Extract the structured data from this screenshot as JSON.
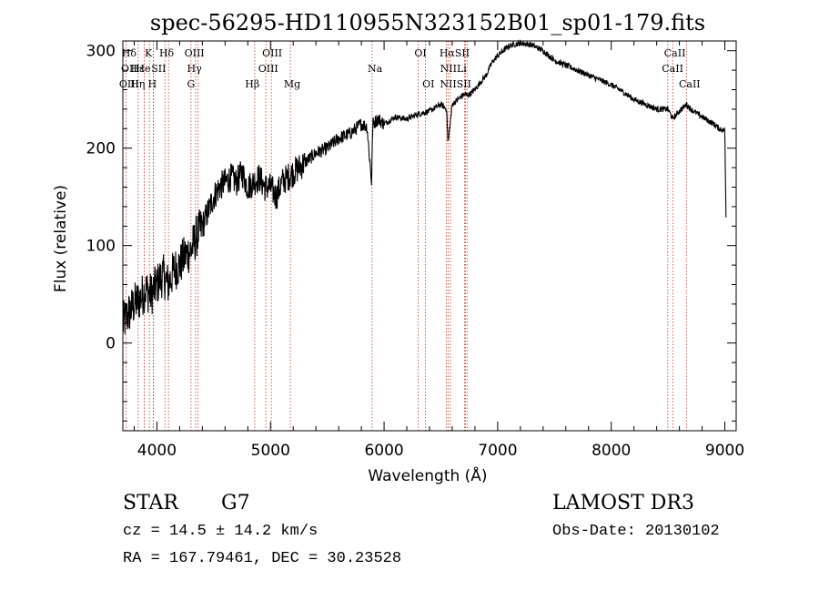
{
  "chart_data": {
    "type": "line",
    "title": "spec-56295-HD110955N323152B01_sp01-179.fits",
    "xlabel": "Wavelength (Å)",
    "ylabel": "Flux (relative)",
    "xlim": [
      3700,
      9100
    ],
    "ylim": [
      -90,
      310
    ],
    "x_ticks": [
      4000,
      5000,
      6000,
      7000,
      8000,
      9000
    ],
    "x_tick_labels": [
      "4000",
      "5000",
      "6000",
      "7000",
      "8000",
      "9000"
    ],
    "y_ticks": [
      0,
      100,
      200,
      300
    ],
    "y_tick_labels": [
      "0",
      "100",
      "200",
      "300"
    ],
    "series": [
      {
        "name": "spectrum",
        "x": [
          3700,
          3750,
          3800,
          3850,
          3900,
          3950,
          4000,
          4050,
          4100,
          4150,
          4200,
          4250,
          4300,
          4350,
          4400,
          4450,
          4500,
          4550,
          4600,
          4650,
          4700,
          4750,
          4800,
          4850,
          4900,
          4950,
          5000,
          5050,
          5100,
          5150,
          5200,
          5300,
          5400,
          5500,
          5600,
          5700,
          5800,
          5850,
          5890,
          5900,
          5950,
          6000,
          6100,
          6200,
          6300,
          6400,
          6500,
          6550,
          6563,
          6600,
          6650,
          6700,
          6750,
          6800,
          6850,
          6900,
          6950,
          7000,
          7100,
          7200,
          7300,
          7400,
          7500,
          7600,
          7700,
          7800,
          7900,
          8000,
          8100,
          8200,
          8300,
          8400,
          8500,
          8542,
          8600,
          8662,
          8700,
          8800,
          8900,
          8950,
          9000,
          9010
        ],
        "y": [
          20,
          30,
          40,
          45,
          55,
          50,
          60,
          70,
          60,
          75,
          80,
          90,
          95,
          110,
          120,
          135,
          150,
          160,
          165,
          170,
          165,
          175,
          160,
          165,
          170,
          160,
          160,
          150,
          165,
          170,
          175,
          185,
          195,
          200,
          210,
          215,
          225,
          222,
          165,
          225,
          230,
          225,
          232,
          230,
          235,
          238,
          245,
          240,
          205,
          245,
          250,
          255,
          255,
          260,
          268,
          275,
          288,
          295,
          305,
          308,
          306,
          300,
          290,
          285,
          280,
          275,
          270,
          265,
          258,
          250,
          245,
          240,
          240,
          230,
          238,
          245,
          240,
          232,
          225,
          220,
          218,
          130
        ]
      }
    ],
    "line_features": [
      {
        "name": "Hε",
        "wavelength": 3970
      },
      {
        "name": "OII",
        "wavelength": 3727
      },
      {
        "name": "Hη",
        "wavelength": 3835
      },
      {
        "name": "Hζ",
        "wavelength": 3889
      },
      {
        "name": "K",
        "wavelength": 3934
      },
      {
        "name": "H",
        "wavelength": 3968
      },
      {
        "name": "He",
        "wavelength": 3889
      },
      {
        "name": "SII",
        "wavelength": 4070
      },
      {
        "name": "Hδ",
        "wavelength": 4102
      },
      {
        "name": "OIII",
        "wavelength": 4363
      },
      {
        "name": "Hγ",
        "wavelength": 4340
      },
      {
        "name": "G",
        "wavelength": 4300
      },
      {
        "name": "Hβ",
        "wavelength": 4861
      },
      {
        "name": "OIII",
        "wavelength": 4959
      },
      {
        "name": "OIII",
        "wavelength": 5007
      },
      {
        "name": "Mg",
        "wavelength": 5175
      },
      {
        "name": "Na",
        "wavelength": 5894
      },
      {
        "name": "OI",
        "wavelength": 6300
      },
      {
        "name": "OI",
        "wavelength": 6364
      },
      {
        "name": "Hα",
        "wavelength": 6563
      },
      {
        "name": "NII",
        "wavelength": 6548
      },
      {
        "name": "NII",
        "wavelength": 6583
      },
      {
        "name": "SII",
        "wavelength": 6717
      },
      {
        "name": "SII",
        "wavelength": 6731
      },
      {
        "name": "Li",
        "wavelength": 6708
      },
      {
        "name": "CaII",
        "wavelength": 8498
      },
      {
        "name": "CaII",
        "wavelength": 8542
      },
      {
        "name": "CaII",
        "wavelength": 8662
      }
    ],
    "line_labels": [
      {
        "text": "Hδ",
        "row": 0,
        "x": 3755
      },
      {
        "text": "OII",
        "row": 1,
        "x": 3755
      },
      {
        "text": "OIII",
        "row": 2,
        "x": 3755
      },
      {
        "text": "K",
        "row": 0,
        "x": 3925
      },
      {
        "text": "Hε",
        "row": 1,
        "x": 3830
      },
      {
        "text": "He",
        "row": 1,
        "x": 3880
      },
      {
        "text": "Hη",
        "row": 2,
        "x": 3830
      },
      {
        "text": "SII",
        "row": 1,
        "x": 4015
      },
      {
        "text": "H",
        "row": 2,
        "x": 3960
      },
      {
        "text": "Hδ",
        "row": 0,
        "x": 4085
      },
      {
        "text": "OIII",
        "row": 0,
        "x": 4330
      },
      {
        "text": "Hγ",
        "row": 1,
        "x": 4330
      },
      {
        "text": "G",
        "row": 2,
        "x": 4300
      },
      {
        "text": "Hβ",
        "row": 2,
        "x": 4840
      },
      {
        "text": "OIII",
        "row": 0,
        "x": 5015
      },
      {
        "text": "OIII",
        "row": 1,
        "x": 4980
      },
      {
        "text": "Mg",
        "row": 2,
        "x": 5190
      },
      {
        "text": "Na",
        "row": 1,
        "x": 5920
      },
      {
        "text": "OI",
        "row": 0,
        "x": 6320
      },
      {
        "text": "OI",
        "row": 2,
        "x": 6390
      },
      {
        "text": "HαSII",
        "row": 0,
        "x": 6620
      },
      {
        "text": "NIILi",
        "row": 1,
        "x": 6610
      },
      {
        "text": "NIISII",
        "row": 2,
        "x": 6630
      },
      {
        "text": "CaII",
        "row": 0,
        "x": 8560
      },
      {
        "text": "CaII",
        "row": 1,
        "x": 8540
      },
      {
        "text": "CaII",
        "row": 2,
        "x": 8690
      }
    ]
  },
  "footer": {
    "object_type": "STAR",
    "subclass": "G7",
    "survey": "LAMOST DR3",
    "redshift": "cz = 14.5 ± 14.2 km/s",
    "obs_date": "Obs-Date: 20130102",
    "coords": "RA = 167.79461, DEC =  30.23528"
  },
  "colors": {
    "spectrum": "#000000",
    "feature_lines": "#c0392b",
    "background": "#ffffff"
  }
}
